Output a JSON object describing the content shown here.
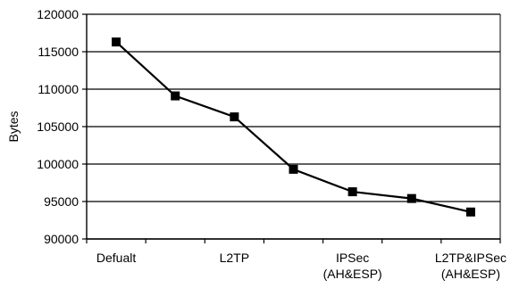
{
  "chart_data": {
    "type": "line",
    "title": "",
    "xlabel": "",
    "ylabel": "Bytes",
    "ylim": [
      90000,
      120000
    ],
    "yticks": [
      "90000",
      "95000",
      "100000",
      "105000",
      "110000",
      "115000",
      "120000"
    ],
    "grid": true,
    "legend": "none",
    "categories": [
      [
        "Defualt"
      ],
      [],
      [
        "L2TP"
      ],
      [],
      [
        "IPSec",
        "(AH&ESP)"
      ],
      [],
      [
        "L2TP&IPSec",
        "(AH&ESP)"
      ]
    ],
    "series": [
      {
        "values": [
          116300,
          109100,
          106300,
          99300,
          96300,
          95400,
          93600
        ],
        "color": "#000000",
        "marker": "square"
      }
    ]
  }
}
